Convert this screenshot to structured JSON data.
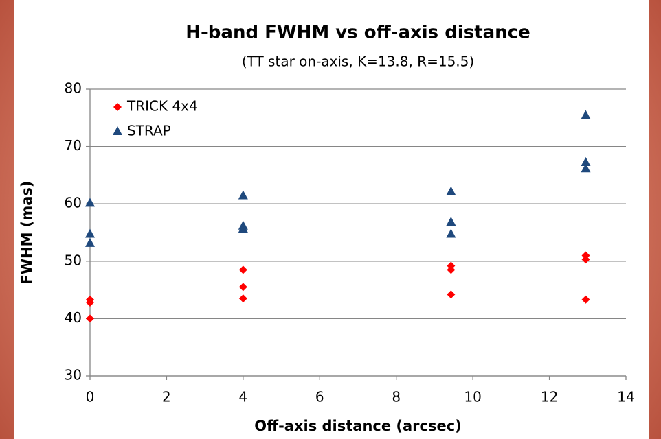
{
  "chart_data": {
    "type": "scatter",
    "title": "H-band FWHM vs off-axis distance",
    "subtitle": "(TT star on-axis, K=13.8, R=15.5)",
    "x_label": "Off-axis distance (arcsec)",
    "y_label": "FWHM (mas)",
    "xlim": [
      0,
      14
    ],
    "xticks": [
      0,
      2,
      4,
      6,
      8,
      10,
      12,
      14
    ],
    "ylim": [
      30,
      80
    ],
    "yticks": [
      30,
      40,
      50,
      60,
      70,
      80
    ],
    "grid": true,
    "legend": "upper left",
    "series": [
      {
        "name": "TRICK 4x4",
        "color": "#ff0000",
        "marker": "diamond",
        "x": [
          0,
          0,
          0,
          4,
          4,
          4,
          9.43,
          9.43,
          9.43,
          12.95,
          12.95,
          12.95
        ],
        "values": [
          43.3,
          42.8,
          40.0,
          48.5,
          45.5,
          43.5,
          49.2,
          48.5,
          44.2,
          51.0,
          50.3,
          43.3
        ]
      },
      {
        "name": "STRAP",
        "color": "#1f497d",
        "marker": "triangle",
        "x": [
          0,
          0,
          0,
          4,
          4,
          4,
          9.43,
          9.43,
          9.43,
          12.95,
          12.95,
          12.95
        ],
        "values": [
          60.1,
          54.7,
          53.1,
          61.4,
          56.1,
          55.6,
          62.1,
          56.8,
          54.7,
          75.4,
          67.2,
          66.1
        ]
      }
    ]
  }
}
